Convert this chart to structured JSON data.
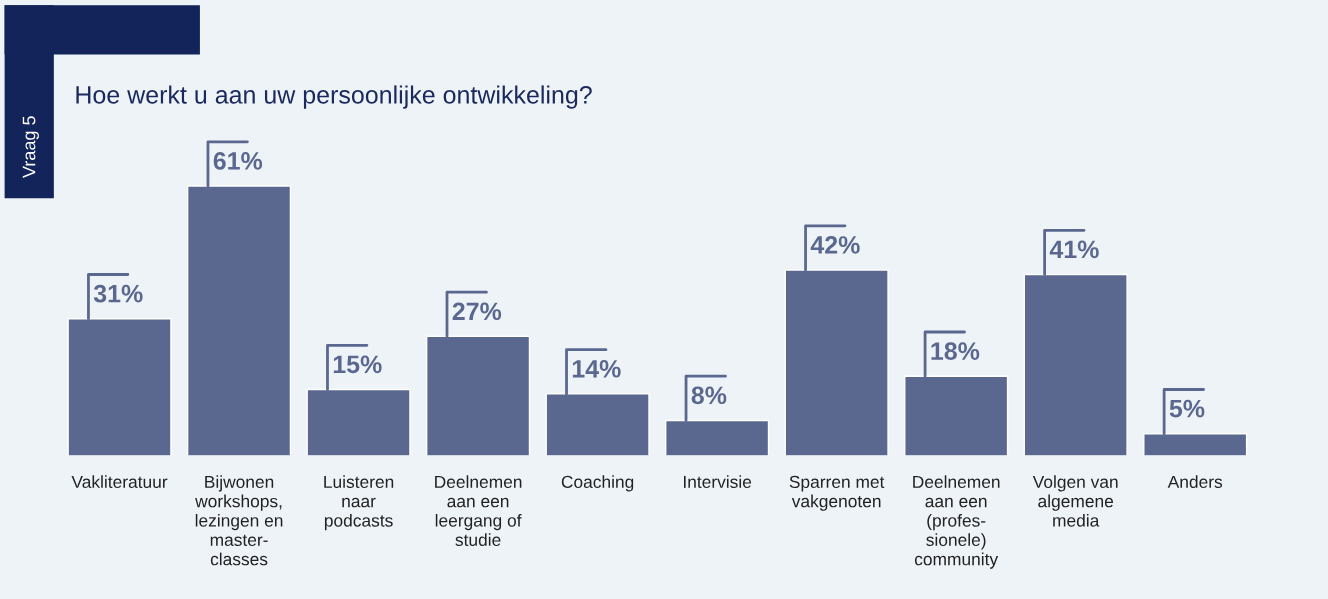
{
  "chart_data": {
    "type": "bar",
    "title": "Hoe werkt u aan uw persoonlijke ontwikkeling?",
    "annotations": [
      "Vraag 5"
    ],
    "categories": [
      "Vakliteratuur",
      "Bijwonen\nworkshops,\nlezingen en\nmaster-\nclasses",
      "Luisteren\nnaar\npodcasts",
      "Deelnemen\naan een\nleergang of\nstudie",
      "Coaching",
      "Intervisie",
      "Sparren met\nvakgenoten",
      "Deelnemen\naan een\n(profes-\nsionele)\ncommunity",
      "Volgen van\nalgemene\nmedia",
      "Anders"
    ],
    "values": [
      31,
      61,
      15,
      27,
      14,
      8,
      42,
      18,
      41,
      5
    ],
    "value_labels": [
      "31%",
      "61%",
      "15%",
      "27%",
      "14%",
      "8%",
      "42%",
      "18%",
      "41%",
      "5%"
    ],
    "color": "#5a6890"
  }
}
